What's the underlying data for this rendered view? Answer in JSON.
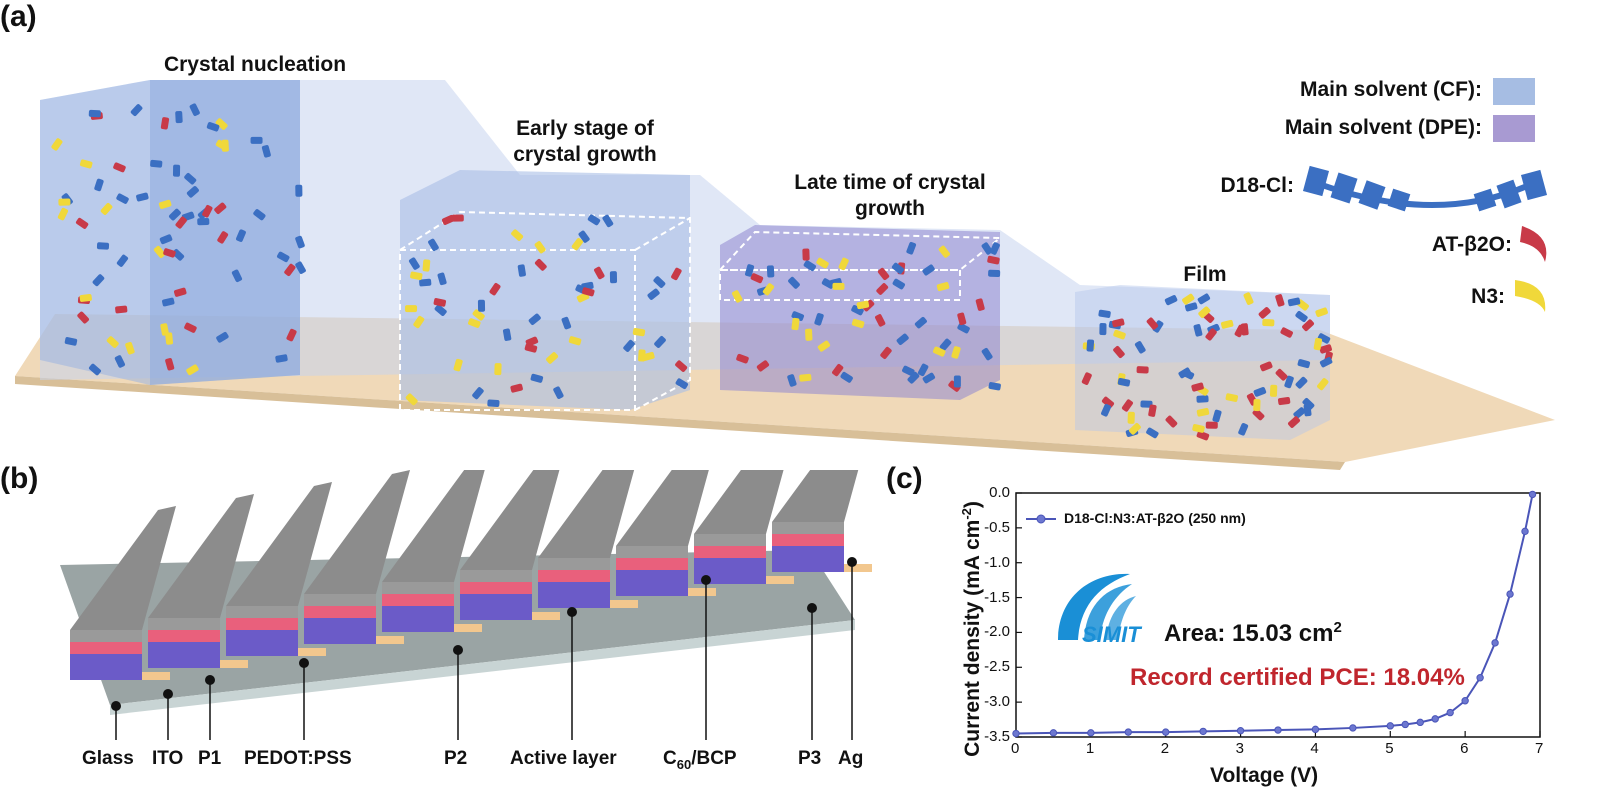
{
  "panel_a": {
    "letter": "(a)",
    "stages": {
      "nucleation": "Crystal nucleation",
      "early": "Early stage of crystal growth",
      "late": "Late time of crystal growth",
      "film": "Film"
    },
    "legend": {
      "cf": "Main solvent (CF):",
      "dpe": "Main solvent (DPE):",
      "d18": "D18-Cl:",
      "at": "AT-β2O:",
      "n3": "N3:"
    },
    "colors": {
      "cf": "#a6bde3",
      "dpe": "#a89ad2",
      "d18": "#3b6fc2",
      "at": "#c83a48",
      "n3": "#f0d83a",
      "platform": "#f0d9b8"
    }
  },
  "panel_b": {
    "letter": "(b)",
    "layers": [
      "Glass",
      "ITO",
      "P1",
      "PEDOT:PSS",
      "P2",
      "Active layer",
      "C60/BCP",
      "P3",
      "Ag"
    ],
    "c60_main": "C",
    "c60_sub": "60",
    "c60_rest": "/BCP",
    "colors": {
      "ag": "#9a9a9a",
      "pink": "#e9607c",
      "purple": "#6b5bc8",
      "ito": "#f2c78e",
      "glass": "#b9c8c8"
    }
  },
  "panel_c": {
    "letter": "(c)",
    "area_text": "Area: 15.03 cm",
    "area_sup": "2",
    "pce_text": "Record certified PCE: 18.04%",
    "logo_text": "SIMIT",
    "colors": {
      "line": "#4a55b8",
      "pce": "#c0262d",
      "logo": "#1a8fd6"
    }
  },
  "chart_data": {
    "type": "line",
    "xlabel": "Voltage (V)",
    "ylabel": "Current density (mA cm",
    "ylabel_sup": "-2",
    "ylabel_end": ")",
    "xlim": [
      0,
      7
    ],
    "ylim": [
      -3.5,
      0.0
    ],
    "xticks": [
      "0",
      "1",
      "2",
      "3",
      "4",
      "5",
      "6",
      "7"
    ],
    "yticks": [
      "0.0",
      "-0.5",
      "-1.0",
      "-1.5",
      "-2.0",
      "-2.5",
      "-3.0",
      "-3.5"
    ],
    "series": [
      {
        "name": "D18-Cl:N3:AT-β2O (250 nm)",
        "x": [
          0,
          0.5,
          1,
          1.5,
          2,
          2.5,
          3,
          3.5,
          4,
          4.5,
          5,
          5.2,
          5.4,
          5.6,
          5.8,
          6.0,
          6.2,
          6.4,
          6.6,
          6.8,
          6.9
        ],
        "y": [
          -3.45,
          -3.44,
          -3.44,
          -3.43,
          -3.43,
          -3.42,
          -3.41,
          -3.4,
          -3.39,
          -3.37,
          -3.34,
          -3.32,
          -3.29,
          -3.24,
          -3.15,
          -2.98,
          -2.65,
          -2.15,
          -1.45,
          -0.55,
          -0.02
        ]
      }
    ]
  }
}
